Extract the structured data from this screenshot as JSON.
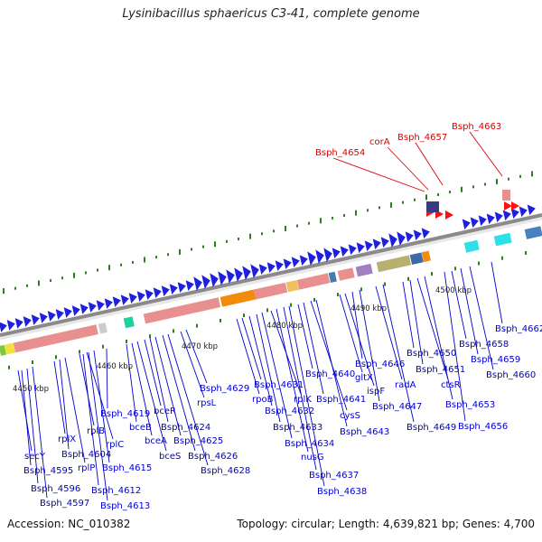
{
  "title": "Lysinibacillus sphaericus C3-41, complete genome",
  "footer": {
    "accession": "Accession: NC_010382",
    "summary": "Topology: circular; Length: 4,639,821 bp; Genes: 4,700"
  },
  "colors": {
    "label_blue": "#0000cc",
    "label_red": "#dd0000",
    "gene_blue": "#1f1fe0",
    "backbone": "#888888",
    "tick_green": "#2e7d1e",
    "rna_pink": "#e89090",
    "orange": "#f08c0a"
  },
  "ticks": [
    "4450 kbp",
    "4460 kbp",
    "4470 kbp",
    "4480 kbp",
    "4490 kbp",
    "4500 kbp"
  ],
  "gene_labels_blue": [
    "secY",
    "Bsph_4595",
    "Bsph_4596",
    "Bsph_4597",
    "rplX",
    "Bsph_4604",
    "rplP",
    "rplB",
    "rplC",
    "Bsph_4612",
    "Bsph_4613",
    "Bsph_4615",
    "Bsph_4619",
    "bceB",
    "bceA",
    "bceS",
    "bceR",
    "Bsph_4624",
    "Bsph_4625",
    "Bsph_4626",
    "Bsph_4628",
    "rpsL",
    "Bsph_4629",
    "rpoB",
    "Bsph_4631",
    "Bsph_4632",
    "rplK",
    "Bsph_4633",
    "Bsph_4634",
    "nusG",
    "Bsph_4637",
    "Bsph_4638",
    "Bsph_4640",
    "Bsph_4641",
    "cysS",
    "Bsph_4643",
    "gltX",
    "ispF",
    "Bsph_4646",
    "Bsph_4647",
    "radA",
    "Bsph_4649",
    "Bsph_4650",
    "Bsph_4651",
    "ctsR",
    "Bsph_4653",
    "Bsph_4656",
    "Bsph_4658",
    "Bsph_4659",
    "Bsph_4660",
    "Bsph_4662"
  ],
  "gene_labels_red": [
    "Bsph_4654",
    "corA",
    "Bsph_4657",
    "Bsph_4663"
  ]
}
